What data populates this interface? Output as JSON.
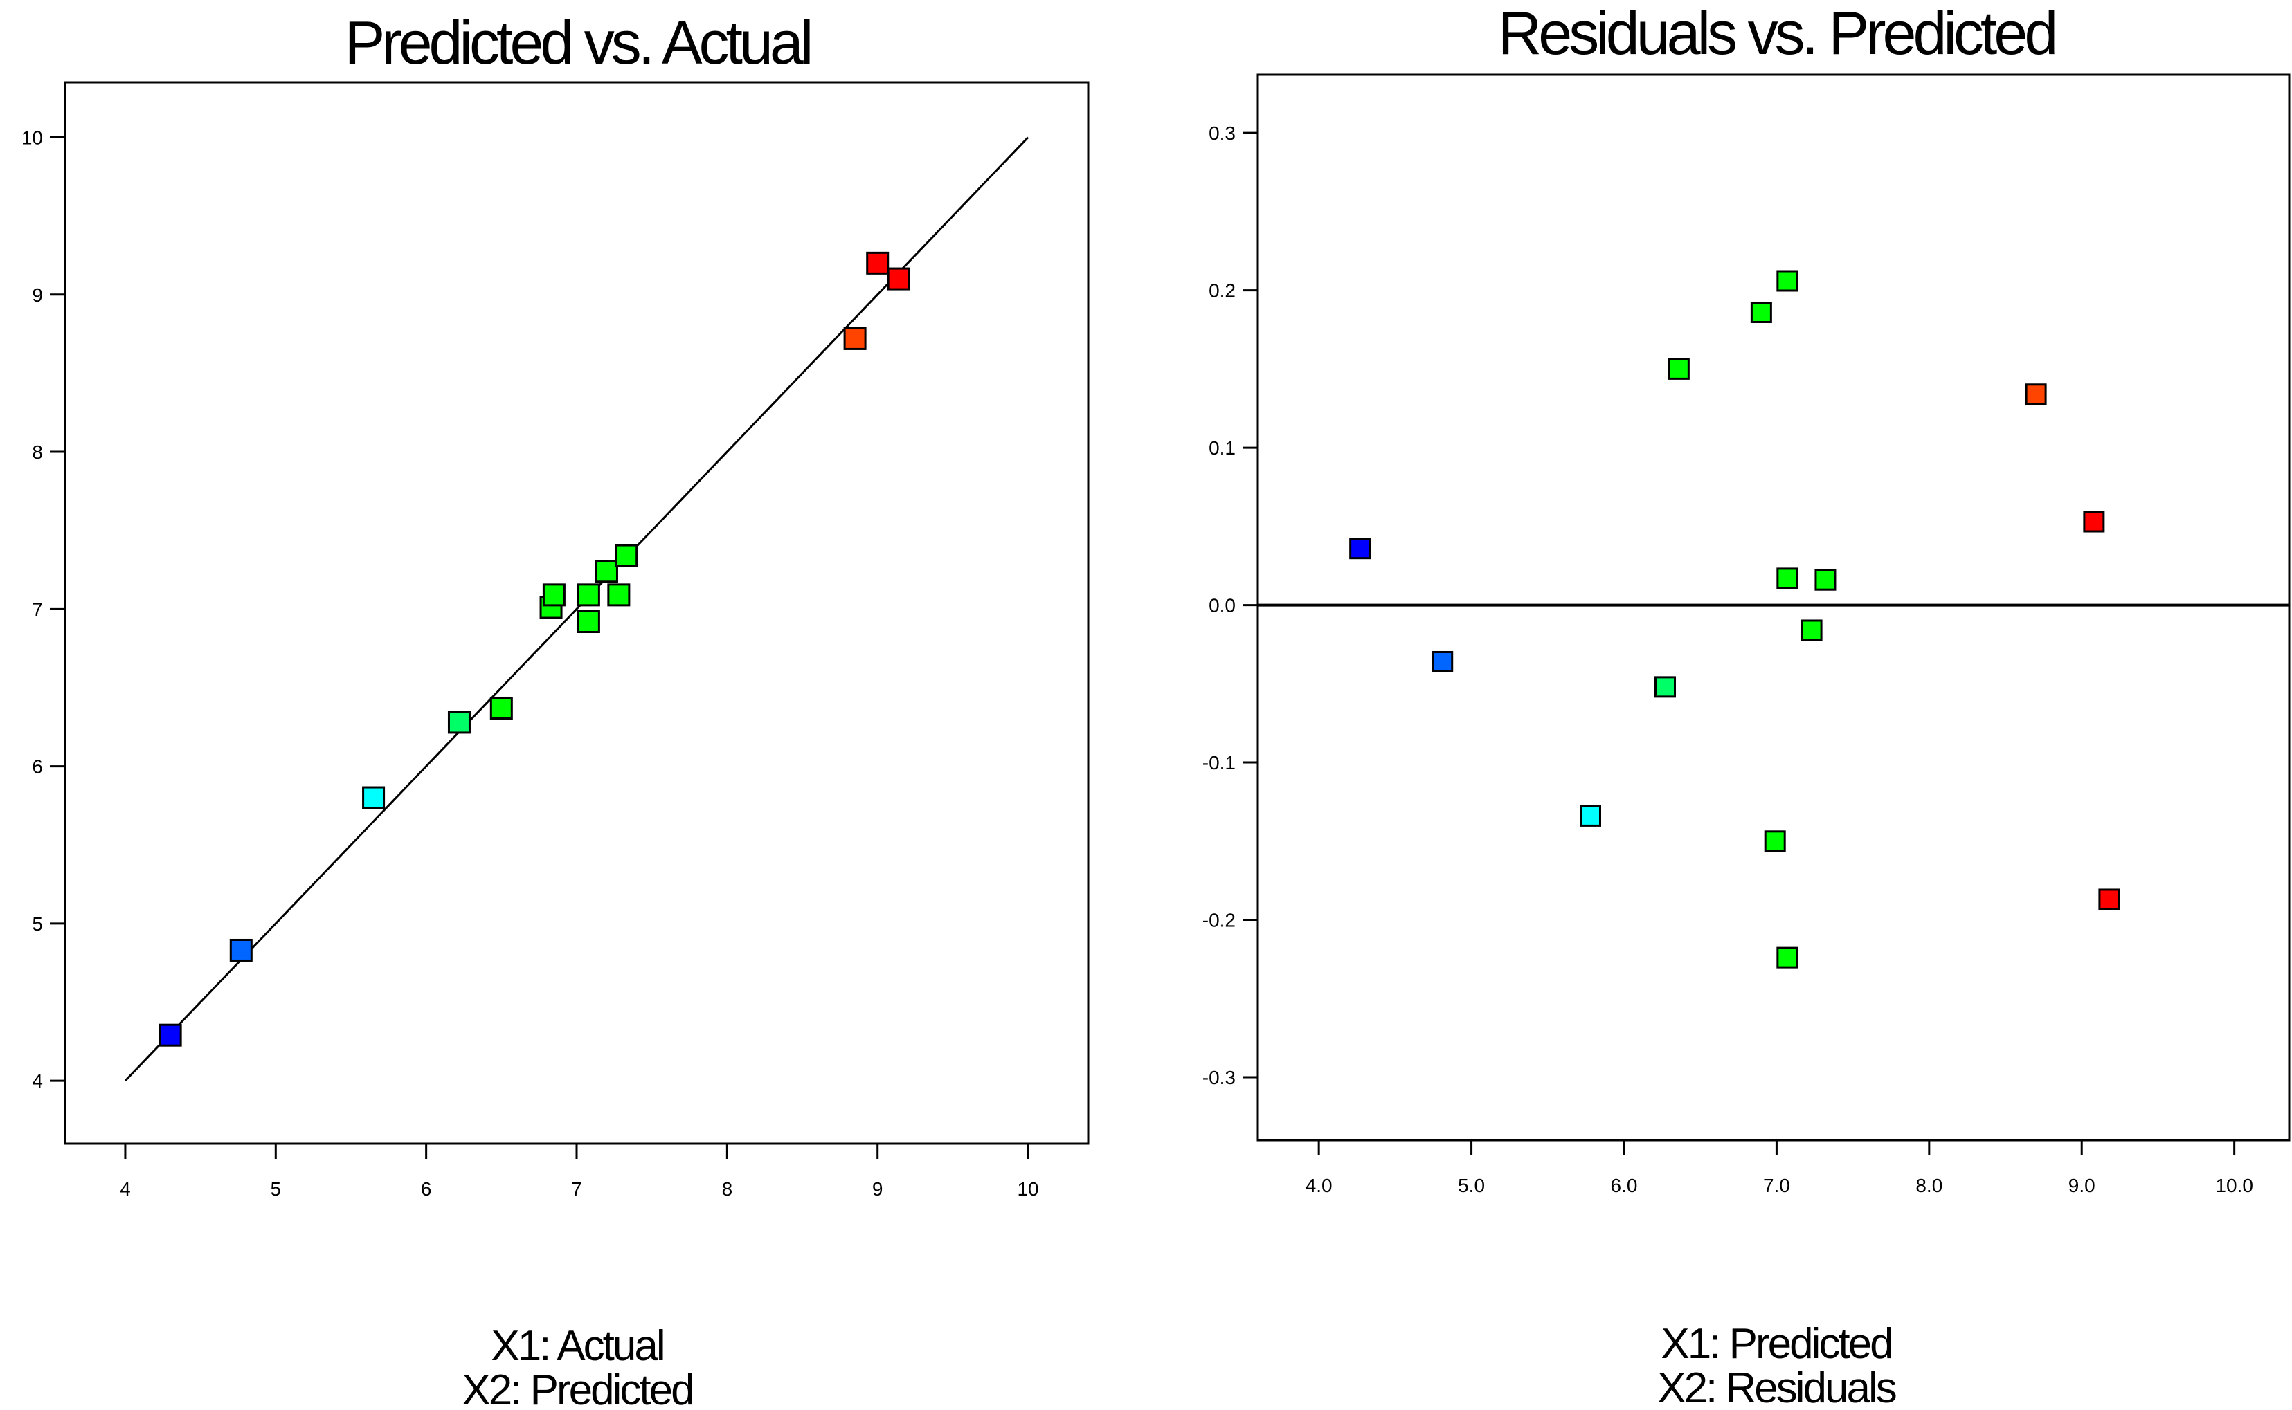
{
  "chart_data": [
    {
      "type": "scatter",
      "title": "Predicted vs. Actual",
      "xlabel": "X1: Actual",
      "ylabel": "X2: Predicted",
      "xlim": [
        3.6,
        10.4
      ],
      "ylim": [
        3.6,
        10.35
      ],
      "xticks": [
        "4",
        "5",
        "6",
        "7",
        "8",
        "9",
        "10"
      ],
      "yticks": [
        "4",
        "5",
        "6",
        "7",
        "8",
        "9",
        "10"
      ],
      "reference_line": {
        "from": [
          4,
          4
        ],
        "to": [
          10,
          10
        ]
      },
      "points": [
        {
          "x": 4.3,
          "y": 4.29,
          "color": "#0000ff"
        },
        {
          "x": 4.77,
          "y": 4.83,
          "color": "#0066ff"
        },
        {
          "x": 5.65,
          "y": 5.8,
          "color": "#00ffff"
        },
        {
          "x": 6.22,
          "y": 6.28,
          "color": "#00ff66"
        },
        {
          "x": 6.5,
          "y": 6.37,
          "color": "#00ff00"
        },
        {
          "x": 6.83,
          "y": 7.01,
          "color": "#00ff00"
        },
        {
          "x": 6.85,
          "y": 7.09,
          "color": "#00ff00"
        },
        {
          "x": 7.08,
          "y": 7.09,
          "color": "#00ff00"
        },
        {
          "x": 7.08,
          "y": 6.92,
          "color": "#00ff00"
        },
        {
          "x": 7.2,
          "y": 7.24,
          "color": "#00ff00"
        },
        {
          "x": 7.28,
          "y": 7.09,
          "color": "#00ff00"
        },
        {
          "x": 7.33,
          "y": 7.34,
          "color": "#00ff00"
        },
        {
          "x": 8.85,
          "y": 8.72,
          "color": "#ff4400"
        },
        {
          "x": 9.0,
          "y": 9.2,
          "color": "#ff0000"
        },
        {
          "x": 9.14,
          "y": 9.1,
          "color": "#ff0000"
        }
      ]
    },
    {
      "type": "scatter",
      "title": "Residuals vs. Predicted",
      "xlabel": "X1: Predicted",
      "ylabel": "X2: Residuals",
      "xlim": [
        3.6,
        10.36
      ],
      "ylim": [
        -0.34,
        0.337
      ],
      "xticks": [
        "4.0",
        "5.0",
        "6.0",
        "7.0",
        "8.0",
        "9.0",
        "10.0"
      ],
      "yticks": [
        "-0.3",
        "-0.2",
        "-0.1",
        "0.0",
        "0.1",
        "0.2",
        "0.3"
      ],
      "reference_line": {
        "y": 0.0
      },
      "points": [
        {
          "x": 4.27,
          "y": 0.036,
          "color": "#0000ff"
        },
        {
          "x": 4.81,
          "y": -0.036,
          "color": "#0066ff"
        },
        {
          "x": 5.78,
          "y": -0.134,
          "color": "#00ffff"
        },
        {
          "x": 6.27,
          "y": -0.052,
          "color": "#00ff66"
        },
        {
          "x": 6.36,
          "y": 0.15,
          "color": "#00ff00"
        },
        {
          "x": 6.9,
          "y": 0.186,
          "color": "#00ff00"
        },
        {
          "x": 6.99,
          "y": -0.15,
          "color": "#00ff00"
        },
        {
          "x": 7.07,
          "y": 0.206,
          "color": "#00ff00"
        },
        {
          "x": 7.07,
          "y": 0.017,
          "color": "#00ff00"
        },
        {
          "x": 7.07,
          "y": -0.224,
          "color": "#00ff00"
        },
        {
          "x": 7.23,
          "y": -0.016,
          "color": "#00ff00"
        },
        {
          "x": 7.32,
          "y": 0.016,
          "color": "#00ff00"
        },
        {
          "x": 8.7,
          "y": 0.134,
          "color": "#ff4400"
        },
        {
          "x": 9.08,
          "y": 0.053,
          "color": "#ff0000"
        },
        {
          "x": 9.18,
          "y": -0.187,
          "color": "#ff0000"
        }
      ]
    }
  ]
}
